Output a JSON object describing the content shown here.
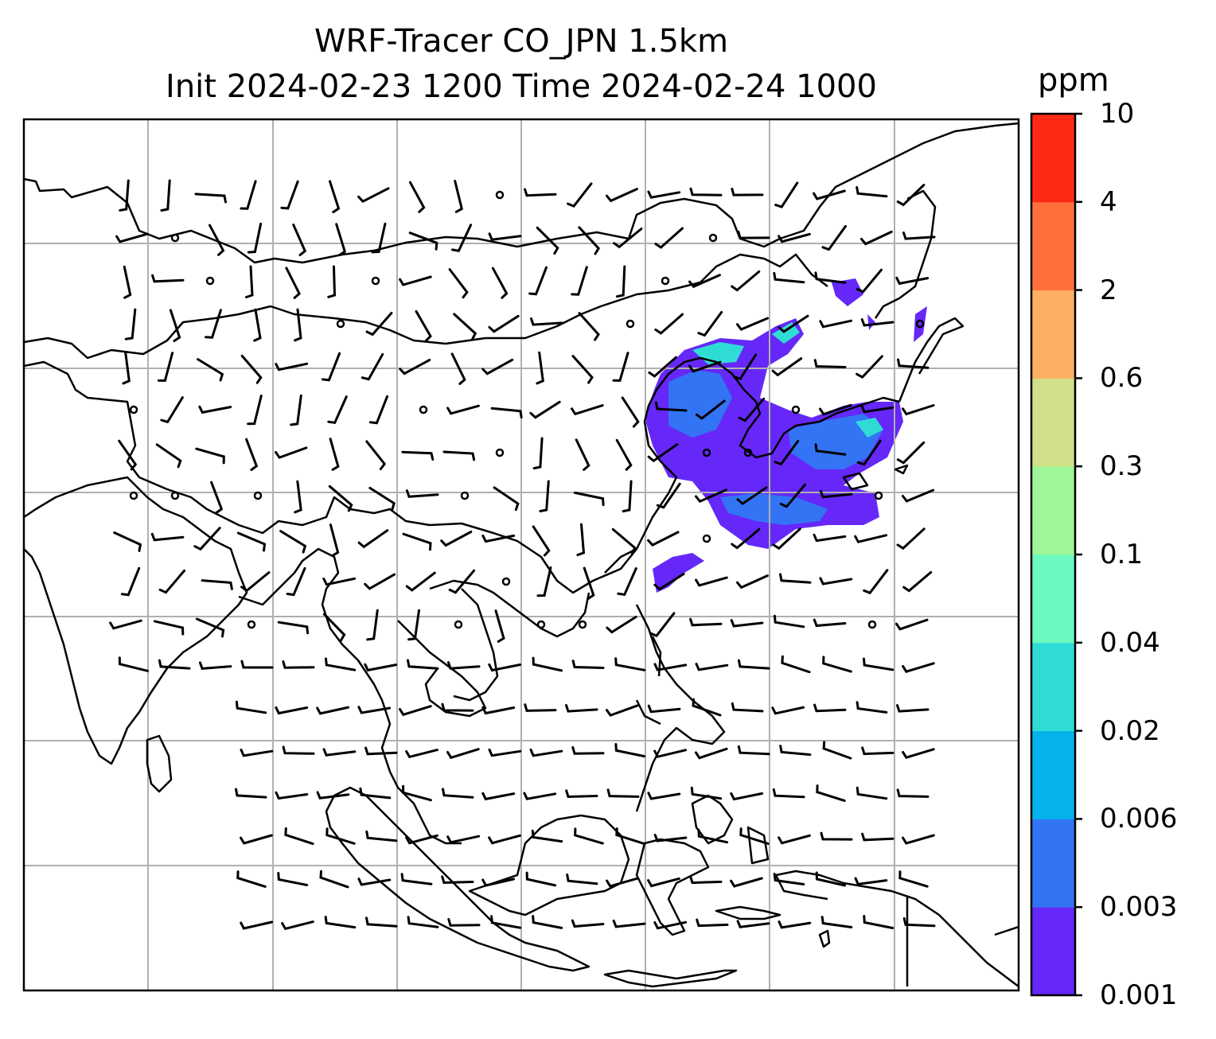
{
  "title": {
    "line1": "WRF-Tracer CO_JPN 1.5km",
    "line2": "Init 2024-02-23 1200 Time 2024-02-24 1000"
  },
  "colorbar": {
    "unit": "ppm",
    "levels": [
      "0.001",
      "0.003",
      "0.006",
      "0.02",
      "0.04",
      "0.1",
      "0.3",
      "0.6",
      "2",
      "4",
      "10"
    ],
    "colors": [
      "#6528f8",
      "#3374f5",
      "#04b3ec",
      "#2fdcd5",
      "#6cf9bf",
      "#9df798",
      "#d0e189",
      "#fdb062",
      "#fe6f3c",
      "#fe2915"
    ]
  },
  "map": {
    "grid": true,
    "background": "#ffffff",
    "coast_color": "#000000",
    "grid_color": "#b0b0b0"
  }
}
